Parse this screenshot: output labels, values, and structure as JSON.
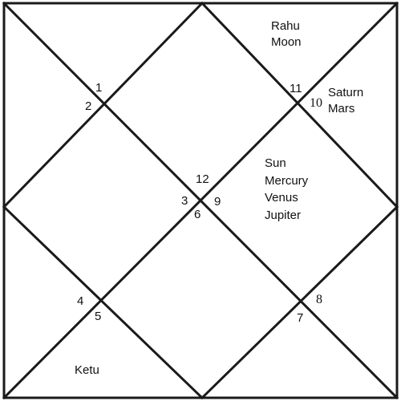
{
  "chart_type": "north-indian-birth-chart",
  "houses": [
    {
      "key": "h1",
      "number": "1",
      "planets": []
    },
    {
      "key": "h2",
      "number": "2",
      "planets": []
    },
    {
      "key": "h3",
      "number": "3",
      "planets": []
    },
    {
      "key": "h4",
      "number": "4",
      "planets": []
    },
    {
      "key": "h5",
      "number": "5",
      "planets": [
        "Ketu"
      ]
    },
    {
      "key": "h6",
      "number": "6",
      "planets": []
    },
    {
      "key": "h7",
      "number": "7",
      "planets": []
    },
    {
      "key": "h8",
      "number": "8",
      "planets": []
    },
    {
      "key": "h9",
      "number": "9",
      "planets": [
        "Sun",
        "Mercury",
        "Venus",
        "Jupiter"
      ]
    },
    {
      "key": "h10",
      "number": "10",
      "planets": [
        "Saturn",
        "Mars"
      ]
    },
    {
      "key": "h11",
      "number": "11",
      "planets": [
        "Rahu",
        "Moon"
      ]
    },
    {
      "key": "h12",
      "number": "12",
      "planets": []
    }
  ]
}
